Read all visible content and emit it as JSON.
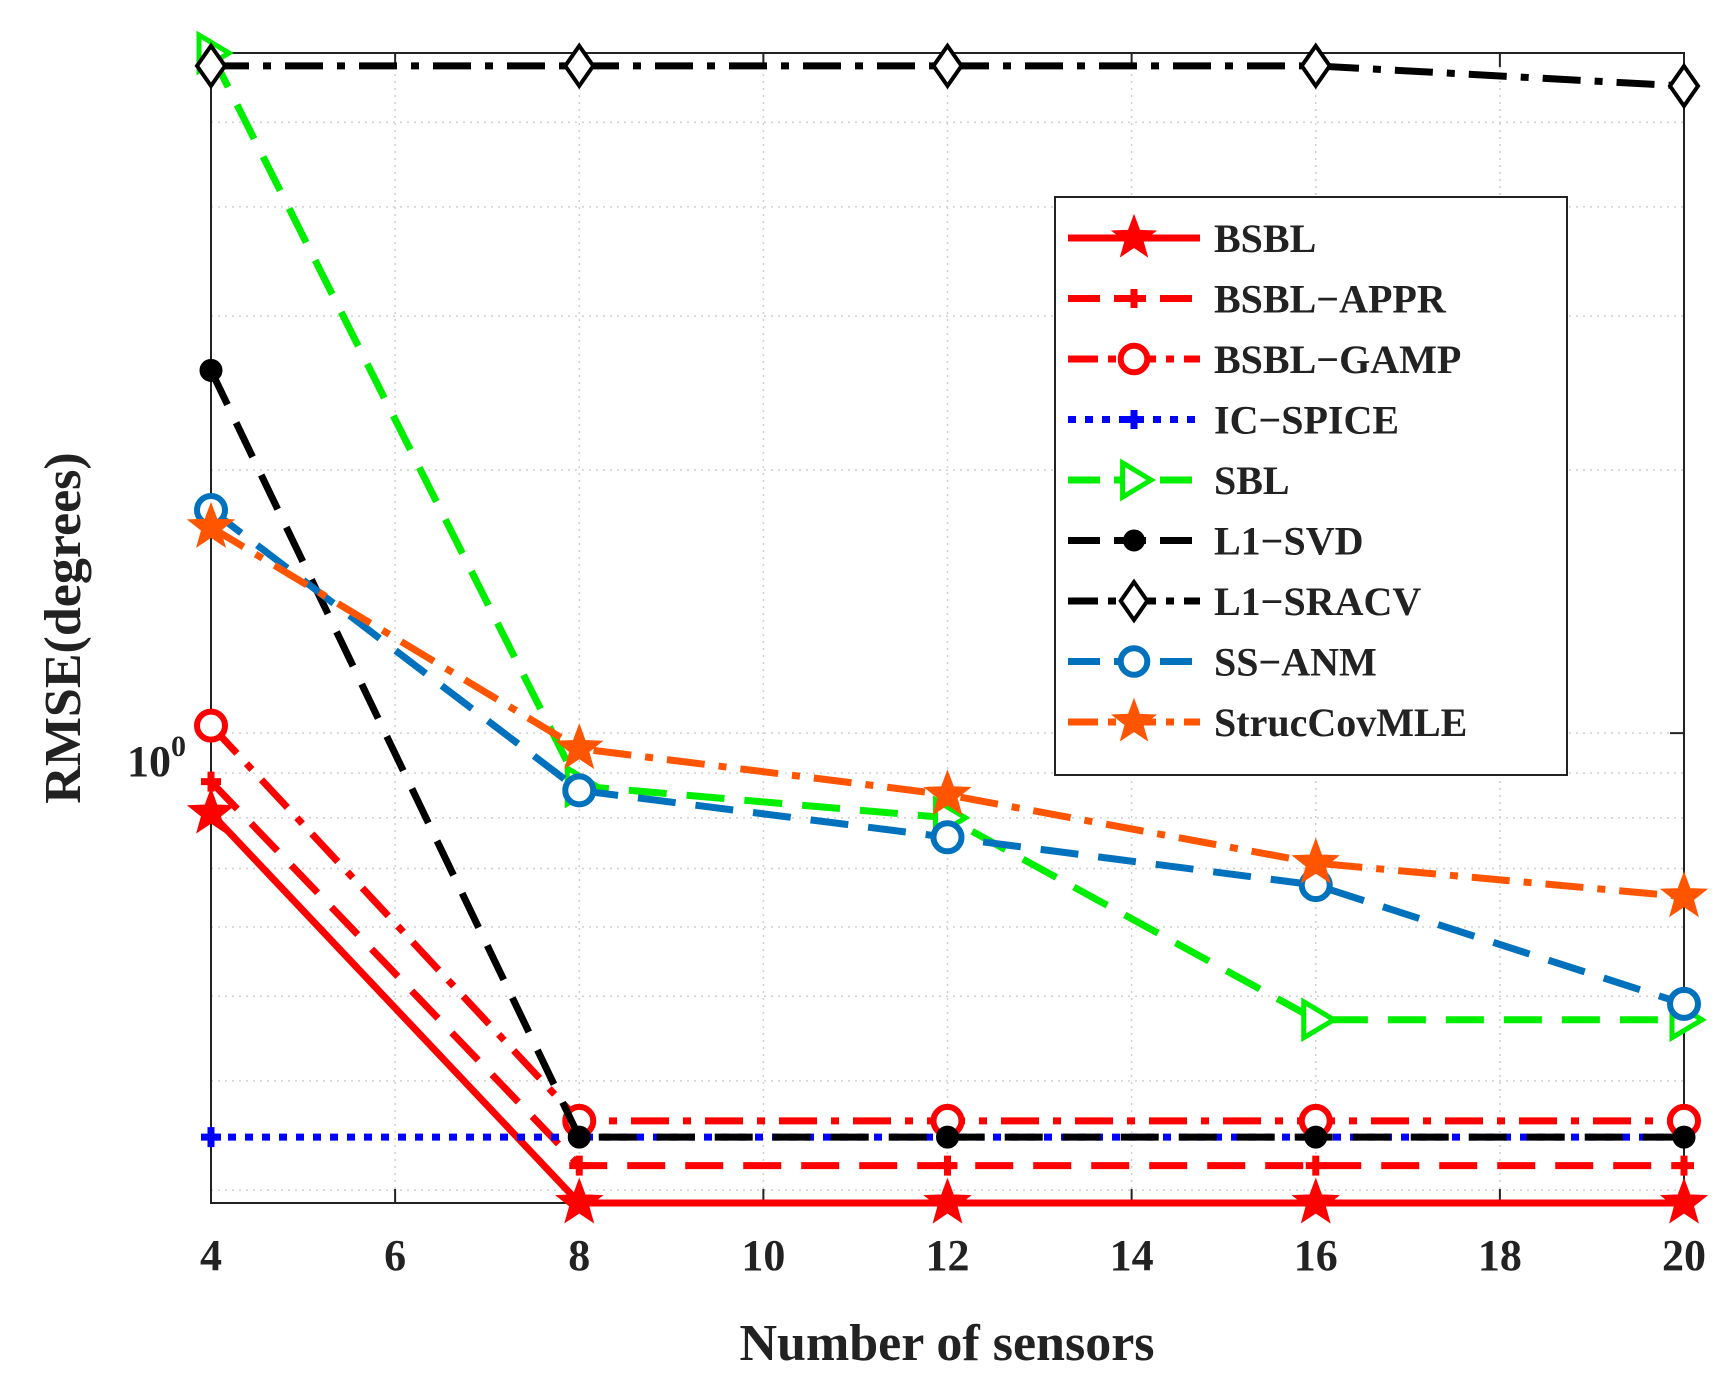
{
  "chart_data": {
    "type": "line",
    "xlabel": "Number of sensors",
    "ylabel": "RMSE(degrees)",
    "yscale": "log",
    "x_ticks": [
      4,
      6,
      8,
      10,
      12,
      14,
      16,
      18,
      20
    ],
    "xlim": [
      4,
      20
    ],
    "ylim": [
      0.29,
      6.0
    ],
    "y_tick_label": {
      "base": "10",
      "exponent": "0",
      "value": 1
    },
    "grid": "dotted",
    "legend_position": "top-right",
    "x": [
      4,
      8,
      12,
      16,
      20
    ],
    "series": [
      {
        "name": "BSBL",
        "color": "#ff0000",
        "dash": "solid",
        "marker": "star",
        "values": [
          0.81,
          0.29,
          0.29,
          0.29,
          0.29
        ]
      },
      {
        "name": "BSBL−APPR",
        "color": "#ff0000",
        "dash": "dashed",
        "marker": "plus",
        "values": [
          0.88,
          0.32,
          0.32,
          0.32,
          0.32
        ]
      },
      {
        "name": "BSBL−GAMP",
        "color": "#ff0000",
        "dash": "dashdot",
        "marker": "circle",
        "values": [
          1.02,
          0.36,
          0.36,
          0.36,
          0.36
        ]
      },
      {
        "name": "IC−SPICE",
        "color": "#0000ff",
        "dash": "dotted",
        "marker": "plus",
        "values": [
          0.345,
          0.345,
          0.345,
          0.345,
          0.345
        ]
      },
      {
        "name": "SBL",
        "color": "#00ee00",
        "dash": "dashed",
        "marker": "triangle-right",
        "values": [
          6.0,
          0.87,
          0.8,
          0.47,
          0.47
        ]
      },
      {
        "name": "L1−SVD",
        "color": "#000000",
        "dash": "dashed",
        "marker": "dot",
        "values": [
          2.6,
          0.345,
          0.345,
          0.345,
          0.345
        ]
      },
      {
        "name": "L1−SRACV",
        "color": "#000000",
        "dash": "dashdot",
        "marker": "diamond",
        "values": [
          5.8,
          5.8,
          5.8,
          5.8,
          5.5
        ]
      },
      {
        "name": "SS−ANM",
        "color": "#0072bd",
        "dash": "dashed",
        "marker": "circle",
        "values": [
          1.8,
          0.86,
          0.76,
          0.67,
          0.49
        ]
      },
      {
        "name": "StrucCovMLE",
        "color": "#ff5500",
        "dash": "dashdot",
        "marker": "star",
        "values": [
          1.72,
          0.96,
          0.85,
          0.71,
          0.65
        ]
      }
    ]
  }
}
